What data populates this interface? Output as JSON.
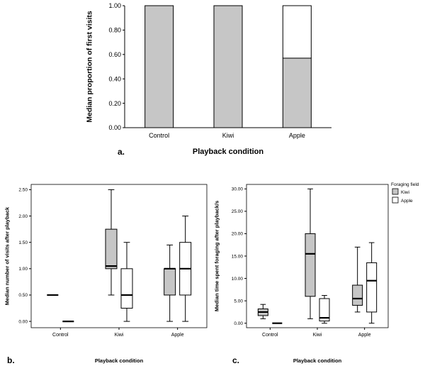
{
  "figure": {
    "panel_labels": {
      "a": "a.",
      "b": "b.",
      "c": "c."
    }
  },
  "colors": {
    "kiwi_fill": "#c6c6c6",
    "apple_fill": "#ffffff",
    "axis": "#000000"
  },
  "chart_data": [
    {
      "id": "panel_a",
      "type": "bar",
      "stacked": true,
      "categories": [
        "Control",
        "Kiwi",
        "Apple"
      ],
      "series": [
        {
          "name": "kiwi-field (gray segment)",
          "fill": "#c6c6c6",
          "values": [
            1.0,
            1.0,
            0.57
          ]
        },
        {
          "name": "apple-field (white segment)",
          "fill": "#ffffff",
          "values": [
            0.0,
            0.0,
            0.43
          ]
        }
      ],
      "xlabel": "Playback condition",
      "ylabel": "Median proportion of first visits",
      "ylim": [
        0,
        1.0
      ],
      "yticks": [
        0.0,
        0.2,
        0.4,
        0.6,
        0.8,
        1.0
      ],
      "grid": false,
      "legend": null
    },
    {
      "id": "panel_b",
      "type": "boxplot",
      "categories": [
        "Control",
        "Kiwi",
        "Apple"
      ],
      "xlabel": "Playback condition",
      "ylabel": "Median number of visits after playback",
      "ylim": [
        -0.12,
        2.6
      ],
      "yticks": [
        0.0,
        0.5,
        1.0,
        1.5,
        2.0,
        2.5
      ],
      "series": [
        {
          "name": "Kiwi",
          "fill": "#c6c6c6",
          "boxes": [
            {
              "low": 0.5,
              "q1": 0.5,
              "med": 0.5,
              "q3": 0.5,
              "high": 0.5
            },
            {
              "low": 0.5,
              "q1": 1.0,
              "med": 1.05,
              "q3": 1.75,
              "high": 2.5
            },
            {
              "low": 0.0,
              "q1": 0.5,
              "med": 1.0,
              "q3": 1.0,
              "high": 1.45
            }
          ]
        },
        {
          "name": "Apple",
          "fill": "#ffffff",
          "boxes": [
            {
              "low": 0.0,
              "q1": 0.0,
              "med": 0.0,
              "q3": 0.0,
              "high": 0.0
            },
            {
              "low": 0.0,
              "q1": 0.25,
              "med": 0.5,
              "q3": 1.0,
              "high": 1.5
            },
            {
              "low": 0.0,
              "q1": 0.5,
              "med": 1.0,
              "q3": 1.5,
              "high": 2.0
            }
          ]
        }
      ],
      "legend": null
    },
    {
      "id": "panel_c",
      "type": "boxplot",
      "categories": [
        "Control",
        "Kiwi",
        "Apple"
      ],
      "xlabel": "Playback condition",
      "ylabel": "Median time spent foraging after playback/s",
      "ylim": [
        -1,
        31
      ],
      "yticks": [
        0.0,
        5.0,
        10.0,
        15.0,
        20.0,
        25.0,
        30.0
      ],
      "series": [
        {
          "name": "Kiwi",
          "fill": "#c6c6c6",
          "boxes": [
            {
              "low": 1.0,
              "q1": 1.7,
              "med": 2.5,
              "q3": 3.2,
              "high": 4.2
            },
            {
              "low": 1.0,
              "q1": 6.0,
              "med": 15.5,
              "q3": 20.0,
              "high": 30.0
            },
            {
              "low": 2.5,
              "q1": 4.0,
              "med": 5.5,
              "q3": 8.5,
              "high": 17.0
            }
          ]
        },
        {
          "name": "Apple",
          "fill": "#ffffff",
          "boxes": [
            {
              "low": 0.0,
              "q1": 0.0,
              "med": 0.0,
              "q3": 0.0,
              "high": 0.0
            },
            {
              "low": 0.0,
              "q1": 0.5,
              "med": 1.2,
              "q3": 5.5,
              "high": 6.2
            },
            {
              "low": 0.0,
              "q1": 2.5,
              "med": 9.5,
              "q3": 13.5,
              "high": 18.0
            }
          ]
        }
      ],
      "legend": {
        "title": "Foraging field",
        "entries": [
          {
            "label": "Kiwi",
            "fill": "#c6c6c6"
          },
          {
            "label": "Apple",
            "fill": "#ffffff"
          }
        ]
      }
    }
  ]
}
